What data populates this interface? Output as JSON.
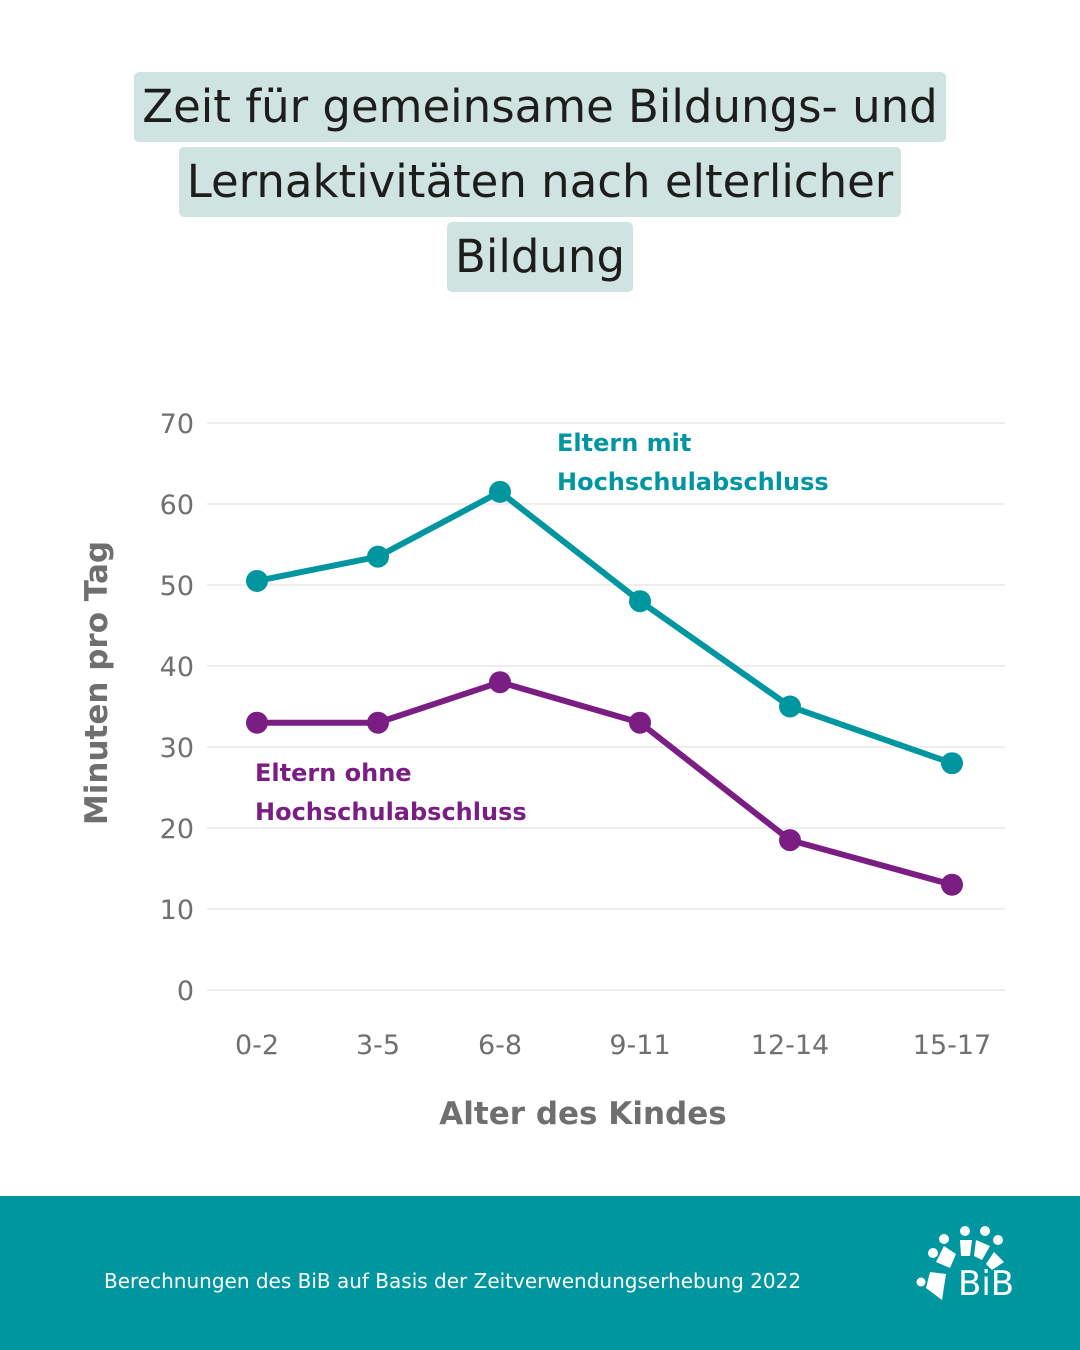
{
  "title": {
    "lines": [
      "Zeit für gemeinsame Bildungs- und",
      "Lernaktivitäten nach elterlicher",
      "Bildung"
    ]
  },
  "colors": {
    "series_with_degree": "#0096a0",
    "series_without_degree": "#7b1e83",
    "title_highlight": "#cfe3e1",
    "footer_background": "#0096a0",
    "gridline": "#dddddd",
    "axis_text": "#707070"
  },
  "chart_data": {
    "type": "line",
    "title": "Zeit für gemeinsame Bildungs- und Lernaktivitäten nach elterlicher Bildung",
    "xlabel": "Alter des Kindes",
    "ylabel": "Minuten pro Tag",
    "categories": [
      "0-2",
      "3-5",
      "6-8",
      "9-11",
      "12-14",
      "15-17"
    ],
    "ylim": [
      0,
      70
    ],
    "yticks": [
      0,
      10,
      20,
      30,
      40,
      50,
      60,
      70
    ],
    "grid": true,
    "legend": "direct labels",
    "series": [
      {
        "name": "Eltern mit Hochschulabschluss",
        "label_lines": [
          "Eltern mit",
          "Hochschulabschluss"
        ],
        "color": "#0096a0",
        "values": [
          50.5,
          53.5,
          61.5,
          48,
          35,
          28
        ]
      },
      {
        "name": "Eltern ohne Hochschulabschluss",
        "label_lines": [
          "Eltern ohne",
          "Hochschulabschluss"
        ],
        "color": "#7b1e83",
        "values": [
          33,
          33,
          38,
          33,
          18.5,
          13
        ]
      }
    ]
  },
  "footer": {
    "source": "Berechnungen des BiB auf Basis der Zeitverwendungserhebung 2022",
    "logo_text": "BiB",
    "logo_icon": "bib-arc-dots-icon"
  }
}
